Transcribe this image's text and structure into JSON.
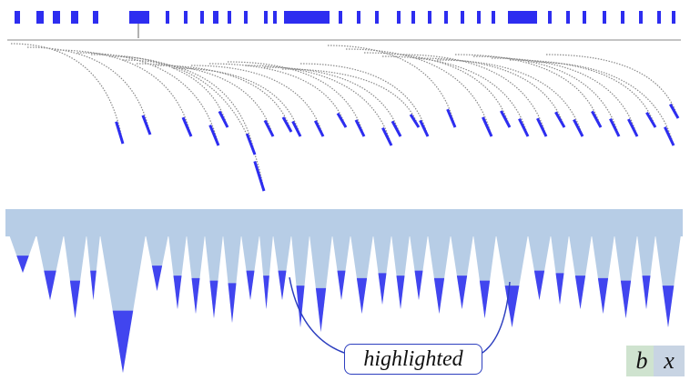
{
  "callout": {
    "label": "highlighted"
  },
  "legend": {
    "b_label": "b",
    "x_label": "x"
  },
  "colors": {
    "highlight": "#2d2df0",
    "tree_line": "#8a8a8a",
    "icicle_fill": "#b7cde6",
    "legend_b": "#cfe3cf",
    "legend_x": "#c8d4e3",
    "callout_border": "#2d3fbf"
  }
}
